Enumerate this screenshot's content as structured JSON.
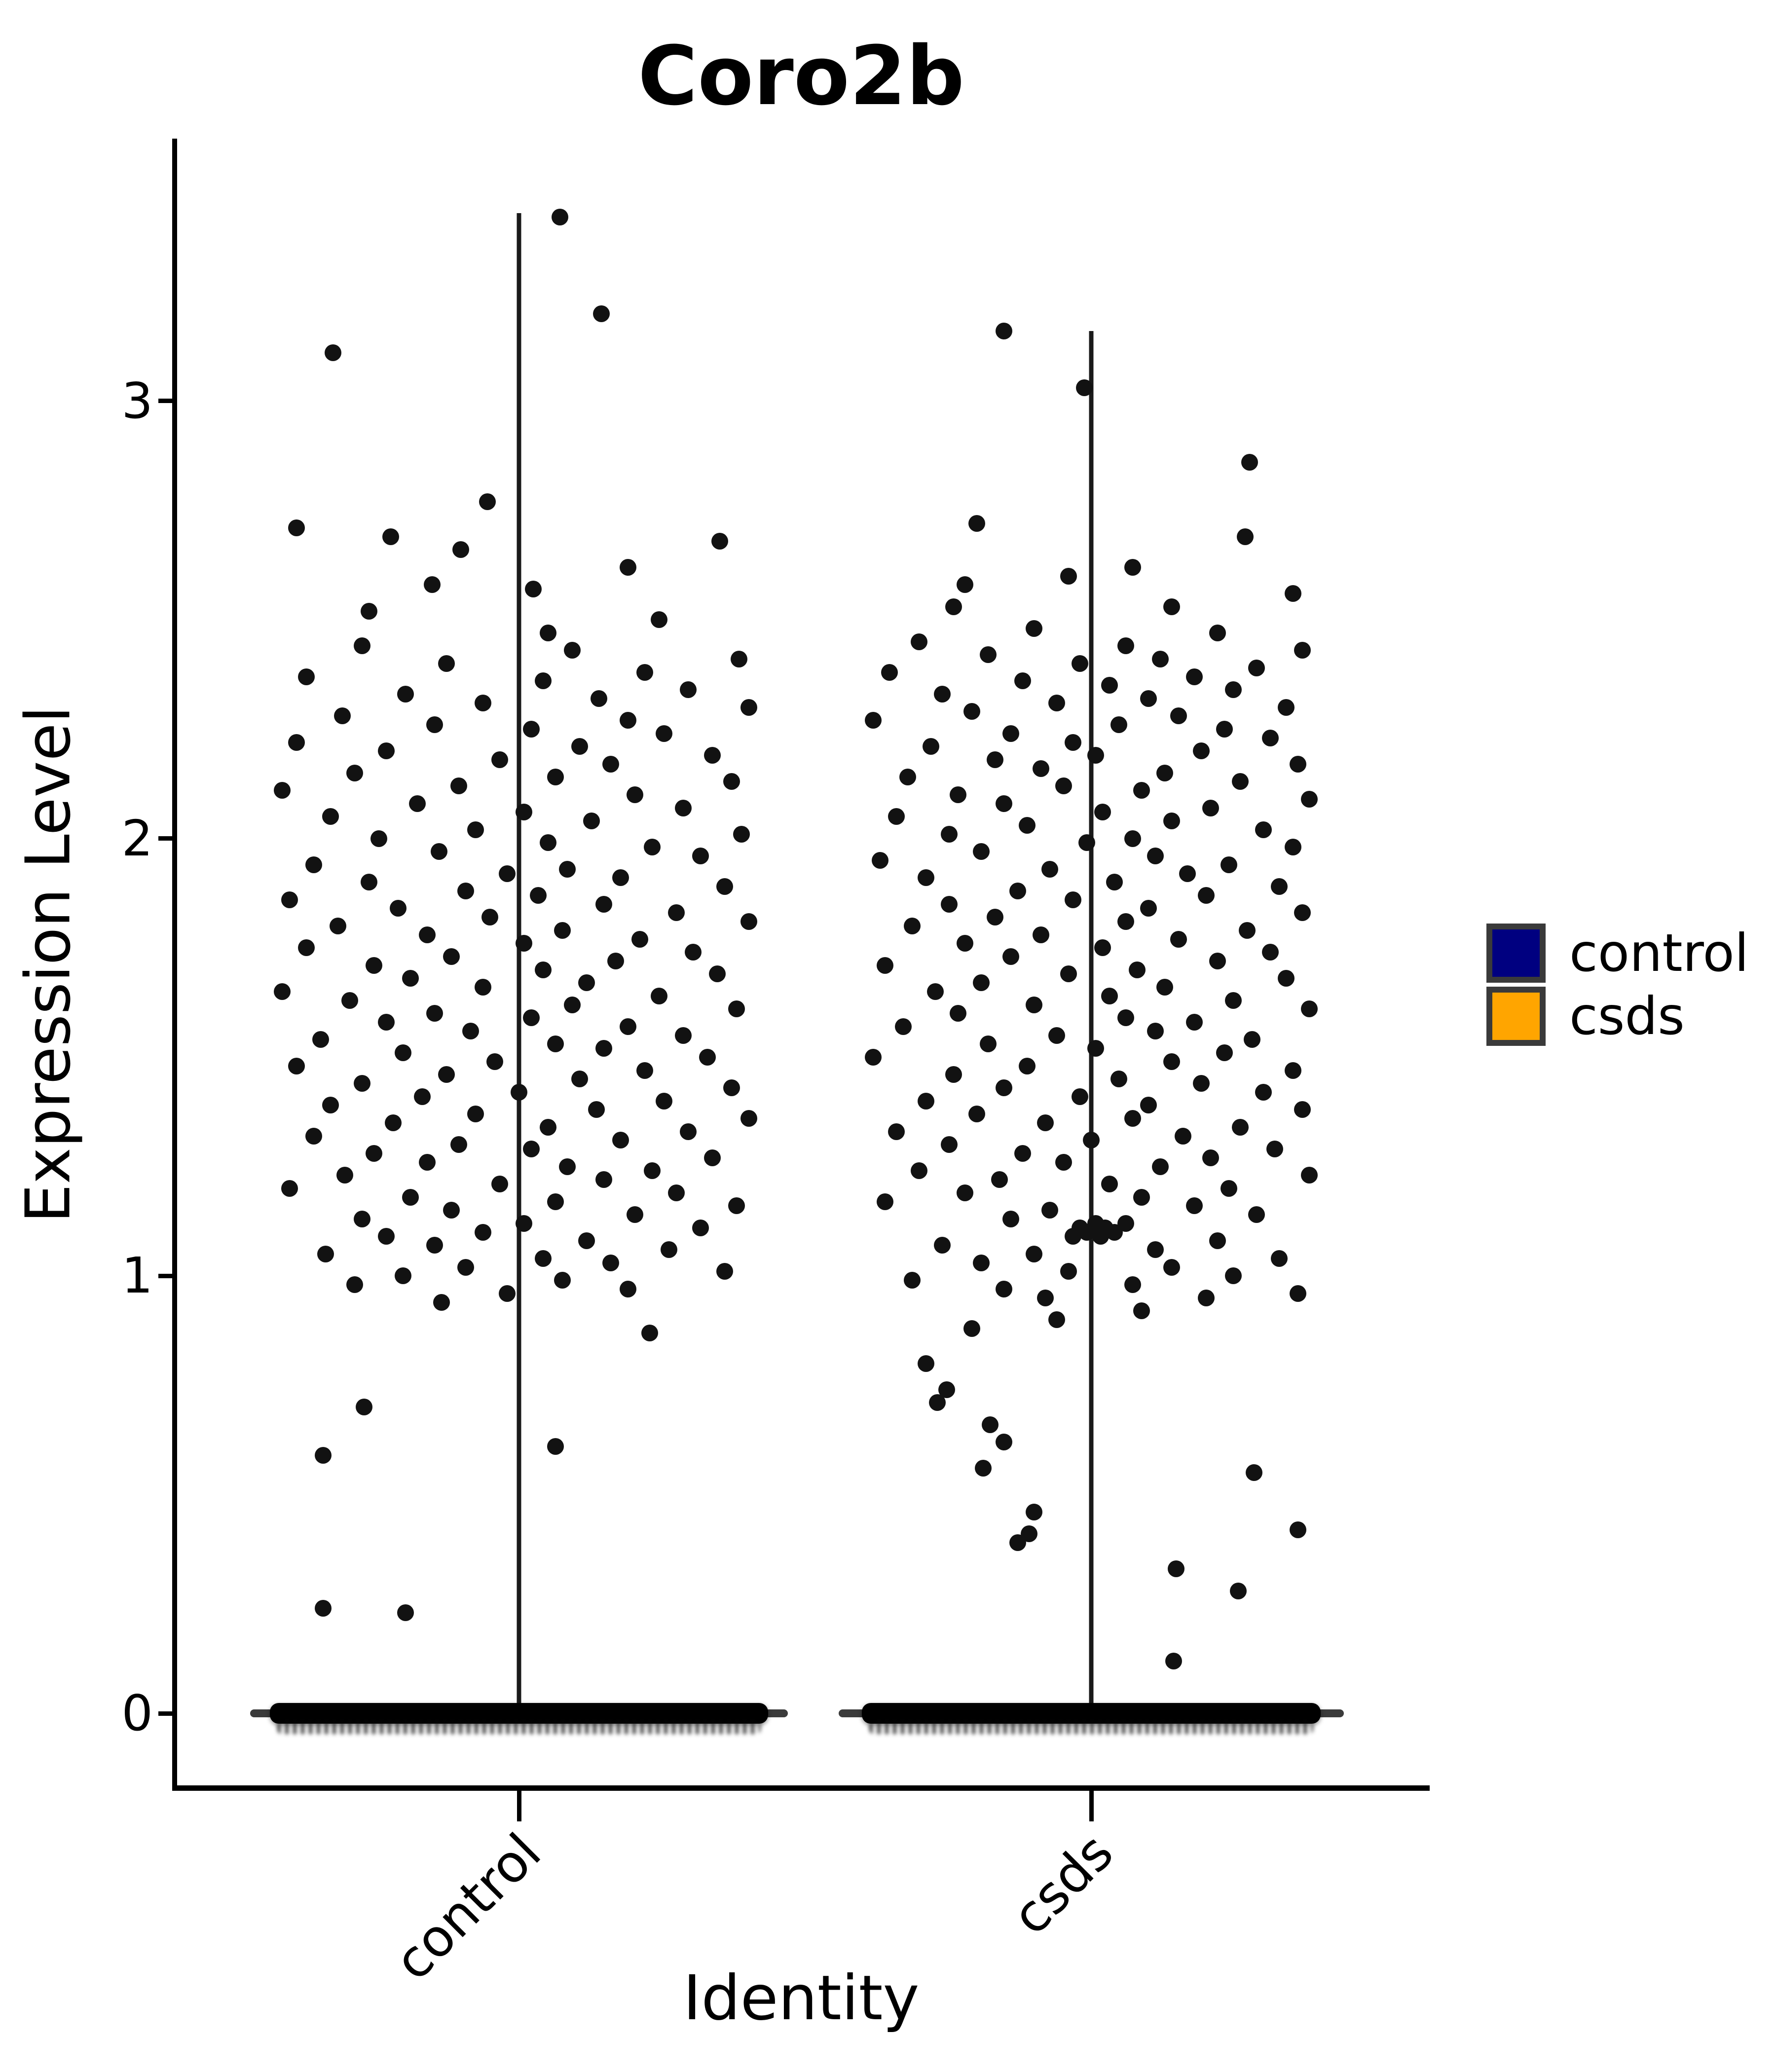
{
  "title": "Coro2b",
  "axes": {
    "y_label": "Expression Level",
    "x_label": "Identity",
    "y_ticks": [
      {
        "label": "0",
        "value": 0
      },
      {
        "label": "1",
        "value": 1
      },
      {
        "label": "2",
        "value": 2
      },
      {
        "label": "3",
        "value": 3
      }
    ],
    "x_ticks": [
      {
        "label": "control",
        "group": "control"
      },
      {
        "label": "csds",
        "group": "csds"
      }
    ]
  },
  "legend": {
    "items": [
      {
        "label": "control",
        "color": "#000080"
      },
      {
        "label": "csds",
        "color": "#FFA500"
      }
    ]
  },
  "chart_data": {
    "type": "scatter",
    "subtype": "violin-jitter-expression",
    "title": "Coro2b",
    "xlabel": "Identity",
    "ylabel": "Expression Level",
    "ylim": [
      -0.18,
      3.6
    ],
    "y_tick_values": [
      0,
      1,
      2,
      3
    ],
    "categories": [
      "control",
      "csds"
    ],
    "grid": false,
    "legend_position": "right-center",
    "point_color": "#121212",
    "groups": [
      {
        "name": "control",
        "color": "#000080",
        "stem_range": [
          0,
          3.43
        ],
        "zero_band": {
          "expression": 0,
          "note": "dense overlapping points at zero expression"
        },
        "points": "0.17,3.42;0.34,3.20;-0.77,3.11;-0.13,2.77;-0.92,2.71;-0.53,2.69;0.83,2.68;-0.24,2.66;0.45,2.62;-0.36,2.58;0.06,2.57;-0.62,2.52;0.58,2.50;0.12,2.47;-0.65,2.44;0.22,2.43;0.91,2.41;-0.30,2.40;0.52,2.38;-0.88,2.37;0.10,2.36;0.70,2.34;-0.47,2.33;0.33,2.32;-0.15,2.31;0.95,2.30;-0.73,2.28;0.45,2.27;-0.35,2.26;0.05,2.25;0.60,2.24;-0.92,2.22;0.25,2.21;-0.55,2.20;0.80,2.19;-0.08,2.18;0.38,2.17;-0.68,2.15;0.15,2.14;0.88,2.13;-0.25,2.12;-0.98,2.11;0.48,2.10;-0.42,2.08;0.68,2.07;0.02,2.06;-0.78,2.05;0.30,2.04;-0.18,2.02;0.92,2.01;-0.58,2.00;0.12,1.99;0.55,1.98;-0.33,1.97;0.75,1.96;-0.85,1.94;0.20,1.93;-0.05,1.92;0.42,1.91;-0.62,1.90;0.85,1.89;-0.22,1.88;0.08,1.87;-0.95,1.86;0.35,1.85;-0.50,1.84;0.65,1.83;-0.12,1.82;0.95,1.81;-0.75,1.80;0.18,1.79;-0.38,1.78;0.50,1.77;0.02,1.76;-0.88,1.75;0.72,1.74;-0.28,1.73;0.40,1.72;-0.60,1.71;0.10,1.70;0.82,1.69;-0.45,1.68;0.28,1.67;-0.15,1.66;-0.98,1.65;0.58,1.64;-0.70,1.63;0.22,1.62;0.90,1.61;-0.35,1.60;0.05,1.59;-0.55,1.58;0.45,1.57;-0.20,1.56;0.68,1.55;-0.82,1.54;0.15,1.53;0.35,1.52;-0.48,1.51;0.78,1.50;-0.10,1.49;-0.92,1.48;0.52,1.47;-0.30,1.46;0.25,1.45;-0.65,1.44;0.88,1.43;0.00,1.42;-0.40,1.41;0.60,1.40;-0.78,1.39;0.32,1.38;-0.18,1.37;0.95,1.36;-0.52,1.35;0.12,1.34;0.70,1.33;-0.85,1.32;0.42,1.31;-0.25,1.30;0.05,1.29;-0.60,1.28;0.80,1.27;-0.38,1.26;0.20,1.25;0.55,1.24;-0.72,1.23;0.35,1.22;-0.08,1.21;-0.95,1.20;0.65,1.19;-0.45,1.18;0.15,1.17;0.90,1.16;-0.28,1.15;0.48,1.14;-0.65,1.13;0.02,1.12;0.75,1.11;-0.15,1.10;-0.55,1.09;0.28,1.08;-0.35,1.07;0.62,1.06;-0.80,1.05;0.10,1.04;0.38,1.03;-0.22,1.02;0.85,1.01;-0.48,1.00;0.18,0.99;-0.68,0.98;0.45,0.97;-0.05,0.96;-0.32,0.94;0.54,0.87;-0.64,0.70;0.15,0.61;-0.81,0.59;-0.81,0.24;-0.47,0.23"
      },
      {
        "name": "csds",
        "color": "#FFA500",
        "stem_range": [
          0,
          3.16
        ],
        "zero_band": {
          "expression": 0,
          "note": "dense overlapping points at zero expression"
        },
        "points": "-0.38,3.16;-0.03,3.03;0.69,2.86;-0.50,2.72;0.67,2.69;0.18,2.62;-0.10,2.60;-0.55,2.58;0.88,2.56;-0.60,2.53;0.35,2.53;-0.25,2.48;0.55,2.47;-0.75,2.45;0.15,2.44;0.92,2.43;-0.45,2.42;0.30,2.41;-0.05,2.40;0.72,2.39;-0.88,2.38;0.45,2.37;-0.30,2.36;0.08,2.35;0.62,2.34;-0.65,2.33;0.25,2.32;-0.15,2.31;0.85,2.30;-0.52,2.29;0.38,2.28;-0.95,2.27;0.12,2.26;0.58,2.25;-0.35,2.24;0.78,2.23;-0.08,2.22;-0.70,2.21;0.48,2.20;0.02,2.19;-0.42,2.18;0.90,2.17;-0.22,2.16;0.32,2.15;-0.80,2.14;0.65,2.13;-0.12,2.12;0.22,2.11;-0.58,2.10;0.95,2.09;-0.38,2.08;0.52,2.07;0.05,2.06;-0.85,2.05;0.35,2.04;-0.28,2.03;0.75,2.02;-0.62,2.01;0.18,2.00;-0.02,1.99;0.88,1.98;-0.48,1.97;0.28,1.96;-0.92,1.95;0.60,1.94;-0.18,1.93;0.42,1.92;-0.72,1.91;0.10,1.90;0.82,1.89;-0.32,1.88;0.50,1.87;-0.08,1.86;-0.62,1.85;0.25,1.84;0.92,1.83;-0.42,1.82;0.15,1.81;-0.78,1.80;0.68,1.79;-0.22,1.78;0.38,1.77;-0.55,1.76;0.05,1.75;0.78,1.74;-0.35,1.73;0.55,1.72;-0.90,1.71;0.20,1.70;-0.10,1.69;0.85,1.68;-0.48,1.67;0.32,1.66;-0.68,1.65;0.08,1.64;0.62,1.63;-0.25,1.62;0.95,1.61;-0.58,1.60;0.15,1.59;0.45,1.58;-0.82,1.57;0.28,1.56;-0.15,1.55;0.70,1.54;-0.45,1.53;0.02,1.52;0.58,1.51;-0.95,1.50;0.35,1.49;-0.28,1.48;0.88,1.47;-0.60,1.46;0.12,1.45;0.48,1.44;-0.38,1.43;0.75,1.42;-0.05,1.41;-0.72,1.40;0.25,1.39;0.92,1.38;-0.50,1.37;0.18,1.36;-0.20,1.35;0.65,1.34;-0.85,1.33;0.40,1.32;0.00,1.31;-0.62,1.30;0.80,1.29;-0.30,1.28;0.52,1.27;-0.12,1.26;0.30,1.25;-0.75,1.24;0.95,1.23;-0.40,1.22;0.08,1.21;0.60,1.20;-0.55,1.19;0.22,1.18;-0.90,1.17;0.45,1.16;-0.18,1.15;0.72,1.14;-0.35,1.13;0.15,1.12;0.02,1.12;-0.05,1.11;0.06,1.11;-0.02,1.10;0.10,1.10;0.04,1.09;-0.08,1.09;0.55,1.08;-0.65,1.07;0.28,1.06;-0.25,1.05;0.82,1.04;-0.48,1.03;0.35,1.02;-0.10,1.01;0.62,1.00;-0.78,0.99;0.18,0.98;-0.38,0.97;0.90,0.96;-0.20,0.95;0.50,0.95;0.22,0.92;-0.15,0.90;-0.52,0.88;-0.72,0.80;-0.63,0.74;-0.67,0.71;-0.44,0.66;-0.38,0.62;-0.47,0.56;0.71,0.55;-0.25,0.46;-0.27,0.41;-0.32,0.39;0.37,0.33;0.64,0.28;0.90,0.42;0.36,0.12"
      }
    ]
  }
}
